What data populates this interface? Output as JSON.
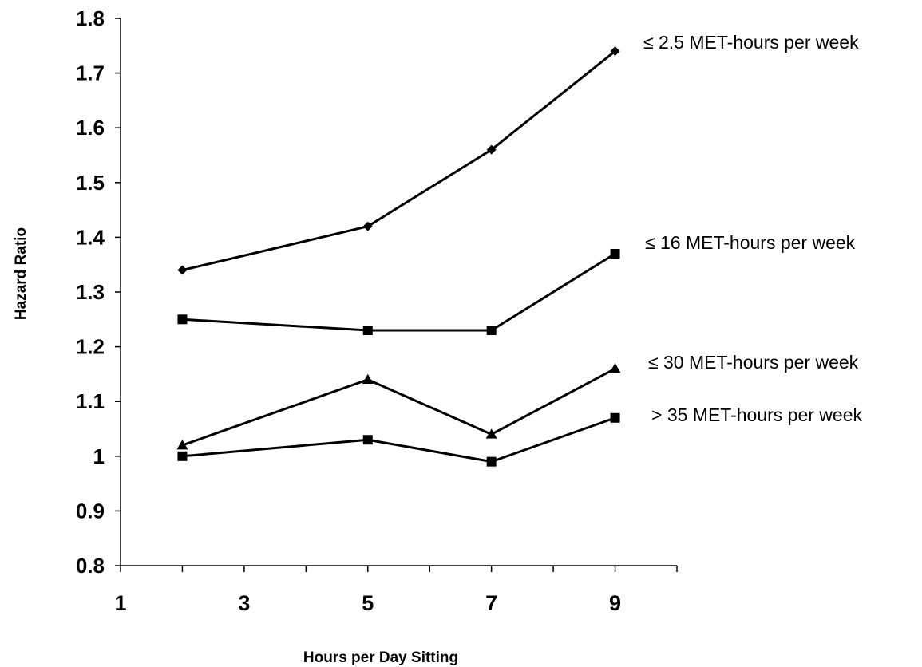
{
  "colors": {
    "background": "#ffffff",
    "ink": "#000000"
  },
  "chart_data": {
    "type": "line",
    "title": "",
    "xlabel": "Hours per Day Sitting",
    "ylabel": "Hazard Ratio",
    "xlim": [
      1,
      10
    ],
    "ylim": [
      0.8,
      1.8
    ],
    "x_ticks": [
      1,
      3,
      5,
      7,
      9
    ],
    "y_ticks": [
      0.8,
      0.9,
      1,
      1.1,
      1.2,
      1.3,
      1.4,
      1.5,
      1.6,
      1.7,
      1.8
    ],
    "y_tick_labels": [
      "0.8",
      "0.9",
      "1",
      "1.1",
      "1.2",
      "1.3",
      "1.4",
      "1.5",
      "1.6",
      "1.7",
      "1.8"
    ],
    "x_tick_labels": [
      "1",
      "3",
      "5",
      "7",
      "9"
    ],
    "grid": false,
    "legend": "direct-labels-right",
    "series": [
      {
        "name": "≤ 2.5 MET-hours per week",
        "marker": "diamond",
        "color": "#000000",
        "x": [
          2,
          5,
          7,
          9
        ],
        "values": [
          1.34,
          1.42,
          1.56,
          1.74
        ]
      },
      {
        "name": "≤ 16 MET-hours per week",
        "marker": "square",
        "color": "#000000",
        "x": [
          2,
          5,
          7,
          9
        ],
        "values": [
          1.25,
          1.23,
          1.23,
          1.37
        ]
      },
      {
        "name": "≤ 30 MET-hours per week",
        "marker": "triangle",
        "color": "#000000",
        "x": [
          2,
          5,
          7,
          9
        ],
        "values": [
          1.02,
          1.14,
          1.04,
          1.16
        ]
      },
      {
        "name": "> 35 MET-hours per week",
        "marker": "square",
        "color": "#000000",
        "x": [
          2,
          5,
          7,
          9
        ],
        "values": [
          1.0,
          1.03,
          0.99,
          1.07
        ]
      }
    ]
  }
}
